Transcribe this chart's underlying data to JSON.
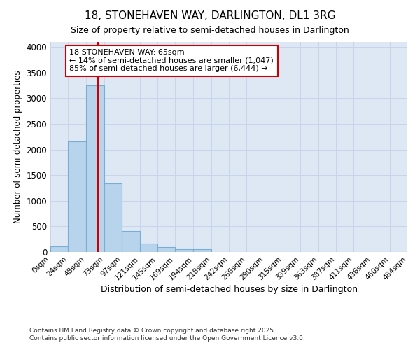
{
  "title": "18, STONEHAVEN WAY, DARLINGTON, DL1 3RG",
  "subtitle": "Size of property relative to semi-detached houses in Darlington",
  "xlabel": "Distribution of semi-detached houses by size in Darlington",
  "ylabel": "Number of semi-detached properties",
  "property_label": "18 STONEHAVEN WAY: 65sqm",
  "pct_smaller": 14,
  "count_smaller": 1047,
  "pct_larger": 85,
  "count_larger": 6444,
  "bin_edges": [
    0,
    24,
    48,
    73,
    97,
    121,
    145,
    169,
    194,
    218,
    242,
    266,
    290,
    315,
    339,
    363,
    387,
    411,
    436,
    460,
    484
  ],
  "bin_labels": [
    "0sqm",
    "24sqm",
    "48sqm",
    "73sqm",
    "97sqm",
    "121sqm",
    "145sqm",
    "169sqm",
    "194sqm",
    "218sqm",
    "242sqm",
    "266sqm",
    "290sqm",
    "315sqm",
    "339sqm",
    "363sqm",
    "387sqm",
    "411sqm",
    "436sqm",
    "460sqm",
    "484sqm"
  ],
  "bar_heights": [
    110,
    2160,
    3250,
    1340,
    410,
    170,
    100,
    60,
    50,
    0,
    0,
    0,
    0,
    0,
    0,
    0,
    0,
    0,
    0,
    0
  ],
  "bar_color": "#b8d4ec",
  "bar_edge_color": "#7aadd4",
  "vline_color": "#cc0000",
  "vline_x": 65,
  "annotation_box_color": "#cc0000",
  "grid_color": "#c8d4e8",
  "background_color": "#dde8f4",
  "ylim": [
    0,
    4100
  ],
  "yticks": [
    0,
    500,
    1000,
    1500,
    2000,
    2500,
    3000,
    3500,
    4000
  ],
  "footer_line1": "Contains HM Land Registry data © Crown copyright and database right 2025.",
  "footer_line2": "Contains public sector information licensed under the Open Government Licence v3.0."
}
